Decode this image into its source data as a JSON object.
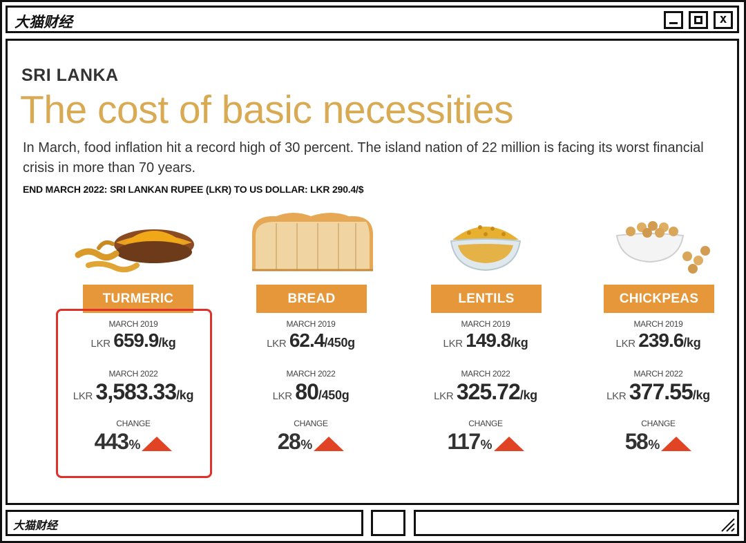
{
  "window": {
    "title": "大猫财经",
    "buttons": {
      "minimize": "minimize",
      "maximize": "maximize",
      "close": "x"
    }
  },
  "infographic": {
    "kicker": "SRI LANKA",
    "headline": "The cost of basic necessities",
    "deck": "In March, food inflation hit a record high of 30 percent. The island nation of 22 million is facing its worst financial crisis in more than 70 years.",
    "exchange_rate": "END MARCH 2022: SRI LANKAN RUPEE (LKR) TO US DOLLAR:  LKR 290.4/$",
    "currency": "LKR",
    "label_2019": "MARCH 2019",
    "label_2022": "MARCH 2022",
    "label_change": "CHANGE",
    "percent_sign": "%",
    "items": [
      {
        "name": "TURMERIC",
        "price_2019": "659.9",
        "unit_2019": "/kg",
        "price_2022": "3,583.33",
        "unit_2022": "/kg",
        "change": "443",
        "icon": "turmeric-icon",
        "highlighted": true
      },
      {
        "name": "BREAD",
        "price_2019": "62.4",
        "unit_2019": "/450g",
        "price_2022": "80",
        "unit_2022": "/450g",
        "change": "28",
        "icon": "bread-icon",
        "highlighted": false
      },
      {
        "name": "LENTILS",
        "price_2019": "149.8",
        "unit_2019": "/kg",
        "price_2022": "325.72",
        "unit_2022": "/kg",
        "change": "117",
        "icon": "lentils-icon",
        "highlighted": false
      },
      {
        "name": "CHICKPEAS",
        "price_2019": "239.6",
        "unit_2019": "/kg",
        "price_2022": "377.55",
        "unit_2022": "/kg",
        "change": "58",
        "icon": "chickpeas-icon",
        "highlighted": false
      }
    ]
  },
  "statusbar": {
    "title": "大猫财经"
  },
  "colors": {
    "headline": "#d9aa54",
    "label_box": "#e5973a",
    "arrow": "#e04424",
    "highlight": "#e0302a"
  }
}
